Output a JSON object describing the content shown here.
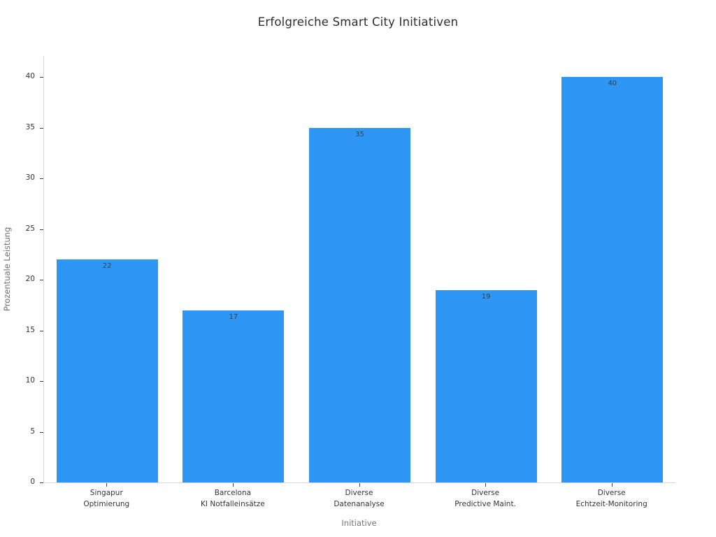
{
  "page": {
    "background": "#ffffff"
  },
  "chart_data": {
    "type": "bar",
    "title": "Erfolgreiche Smart City Initiativen",
    "xlabel": "Initiative",
    "ylabel": "Prozentuale Leistung",
    "categories": [
      [
        "Singapur",
        "Optimierung"
      ],
      [
        "Barcelona",
        "KI Notfalleinsätze"
      ],
      [
        "Diverse",
        "Datenanalyse"
      ],
      [
        "Diverse",
        "Predictive Maint."
      ],
      [
        "Diverse",
        "Echtzeit-Monitoring"
      ]
    ],
    "values": [
      22,
      17,
      35,
      19,
      40
    ],
    "value_labels": [
      "22",
      "17",
      "35",
      "19",
      "40"
    ],
    "yticks": [
      0,
      5,
      10,
      15,
      20,
      25,
      30,
      35,
      40
    ],
    "ylim": [
      0,
      40
    ],
    "grid": false,
    "legend": "none",
    "bar_color": "#2E96F5",
    "axis_color": "#d9d9d9",
    "tick_color": "#404040",
    "label_color": "#333333"
  }
}
